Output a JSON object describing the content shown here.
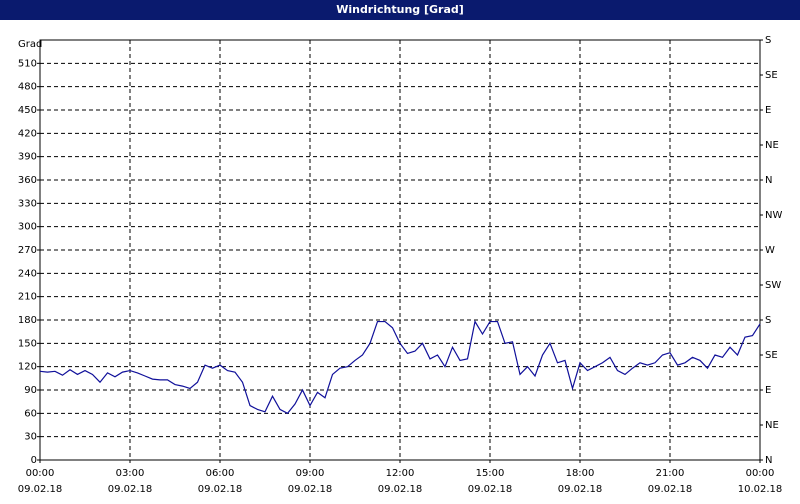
{
  "chart_data": {
    "type": "line",
    "title": "Windrichtung [Grad]",
    "ylabel": "Grad",
    "color": "#10109a",
    "grid": true,
    "xlim": [
      0,
      24
    ],
    "ylim": [
      0,
      540
    ],
    "y2lim": [
      0,
      540
    ],
    "yticks": [
      0,
      30,
      60,
      90,
      120,
      150,
      180,
      210,
      240,
      270,
      300,
      330,
      360,
      390,
      420,
      450,
      480,
      510
    ],
    "y2ticks": [
      {
        "value": 0,
        "label": "N"
      },
      {
        "value": 45,
        "label": "NE"
      },
      {
        "value": 90,
        "label": "E"
      },
      {
        "value": 135,
        "label": "SE"
      },
      {
        "value": 180,
        "label": "S"
      },
      {
        "value": 225,
        "label": "SW"
      },
      {
        "value": 270,
        "label": "W"
      },
      {
        "value": 315,
        "label": "NW"
      },
      {
        "value": 360,
        "label": "N"
      },
      {
        "value": 405,
        "label": "NE"
      },
      {
        "value": 450,
        "label": "E"
      },
      {
        "value": 495,
        "label": "SE"
      },
      {
        "value": 540,
        "label": "S"
      }
    ],
    "xticks": [
      {
        "value": 0,
        "label": "00:00",
        "date": "09.02.18"
      },
      {
        "value": 3,
        "label": "03:00",
        "date": "09.02.18"
      },
      {
        "value": 6,
        "label": "06:00",
        "date": "09.02.18"
      },
      {
        "value": 9,
        "label": "09:00",
        "date": "09.02.18"
      },
      {
        "value": 12,
        "label": "12:00",
        "date": "09.02.18"
      },
      {
        "value": 15,
        "label": "15:00",
        "date": "09.02.18"
      },
      {
        "value": 18,
        "label": "18:00",
        "date": "09.02.18"
      },
      {
        "value": 21,
        "label": "21:00",
        "date": "09.02.18"
      },
      {
        "value": 24,
        "label": "00:00",
        "date": "10.02.18"
      }
    ],
    "x": [
      0,
      0.25,
      0.5,
      0.75,
      1,
      1.25,
      1.5,
      1.75,
      2,
      2.25,
      2.5,
      2.75,
      3,
      3.25,
      3.5,
      3.75,
      4,
      4.25,
      4.5,
      4.75,
      5,
      5.25,
      5.5,
      5.75,
      6,
      6.25,
      6.5,
      6.75,
      7,
      7.25,
      7.5,
      7.75,
      8,
      8.25,
      8.5,
      8.75,
      9,
      9.25,
      9.5,
      9.75,
      10,
      10.25,
      10.5,
      10.75,
      11,
      11.25,
      11.5,
      11.75,
      12,
      12.25,
      12.5,
      12.75,
      13,
      13.25,
      13.5,
      13.75,
      14,
      14.25,
      14.5,
      14.75,
      15,
      15.25,
      15.5,
      15.75,
      16,
      16.25,
      16.5,
      16.75,
      17,
      17.25,
      17.5,
      17.75,
      18,
      18.25,
      18.5,
      18.75,
      19,
      19.25,
      19.5,
      19.75,
      20,
      20.25,
      20.5,
      20.75,
      21,
      21.25,
      21.5,
      21.75,
      22,
      22.25,
      22.5,
      22.75,
      23,
      23.25,
      23.5,
      23.75,
      24
    ],
    "values": [
      114,
      113,
      114,
      109,
      116,
      110,
      115,
      110,
      100,
      112,
      107,
      113,
      115,
      112,
      108,
      104,
      103,
      103,
      97,
      95,
      92,
      100,
      122,
      118,
      122,
      115,
      113,
      100,
      70,
      65,
      62,
      82,
      65,
      60,
      72,
      90,
      70,
      87,
      80,
      110,
      118,
      120,
      128,
      135,
      150,
      178,
      178,
      170,
      150,
      137,
      140,
      150,
      130,
      135,
      120,
      145,
      128,
      130,
      178,
      162,
      178,
      178,
      150,
      152,
      110,
      120,
      108,
      135,
      150,
      125,
      128,
      92,
      125,
      115,
      120,
      125,
      132,
      115,
      110,
      118,
      125,
      122,
      125,
      135,
      138,
      122,
      125,
      132,
      128,
      118,
      135,
      132,
      145,
      135,
      158,
      160,
      175
    ]
  }
}
